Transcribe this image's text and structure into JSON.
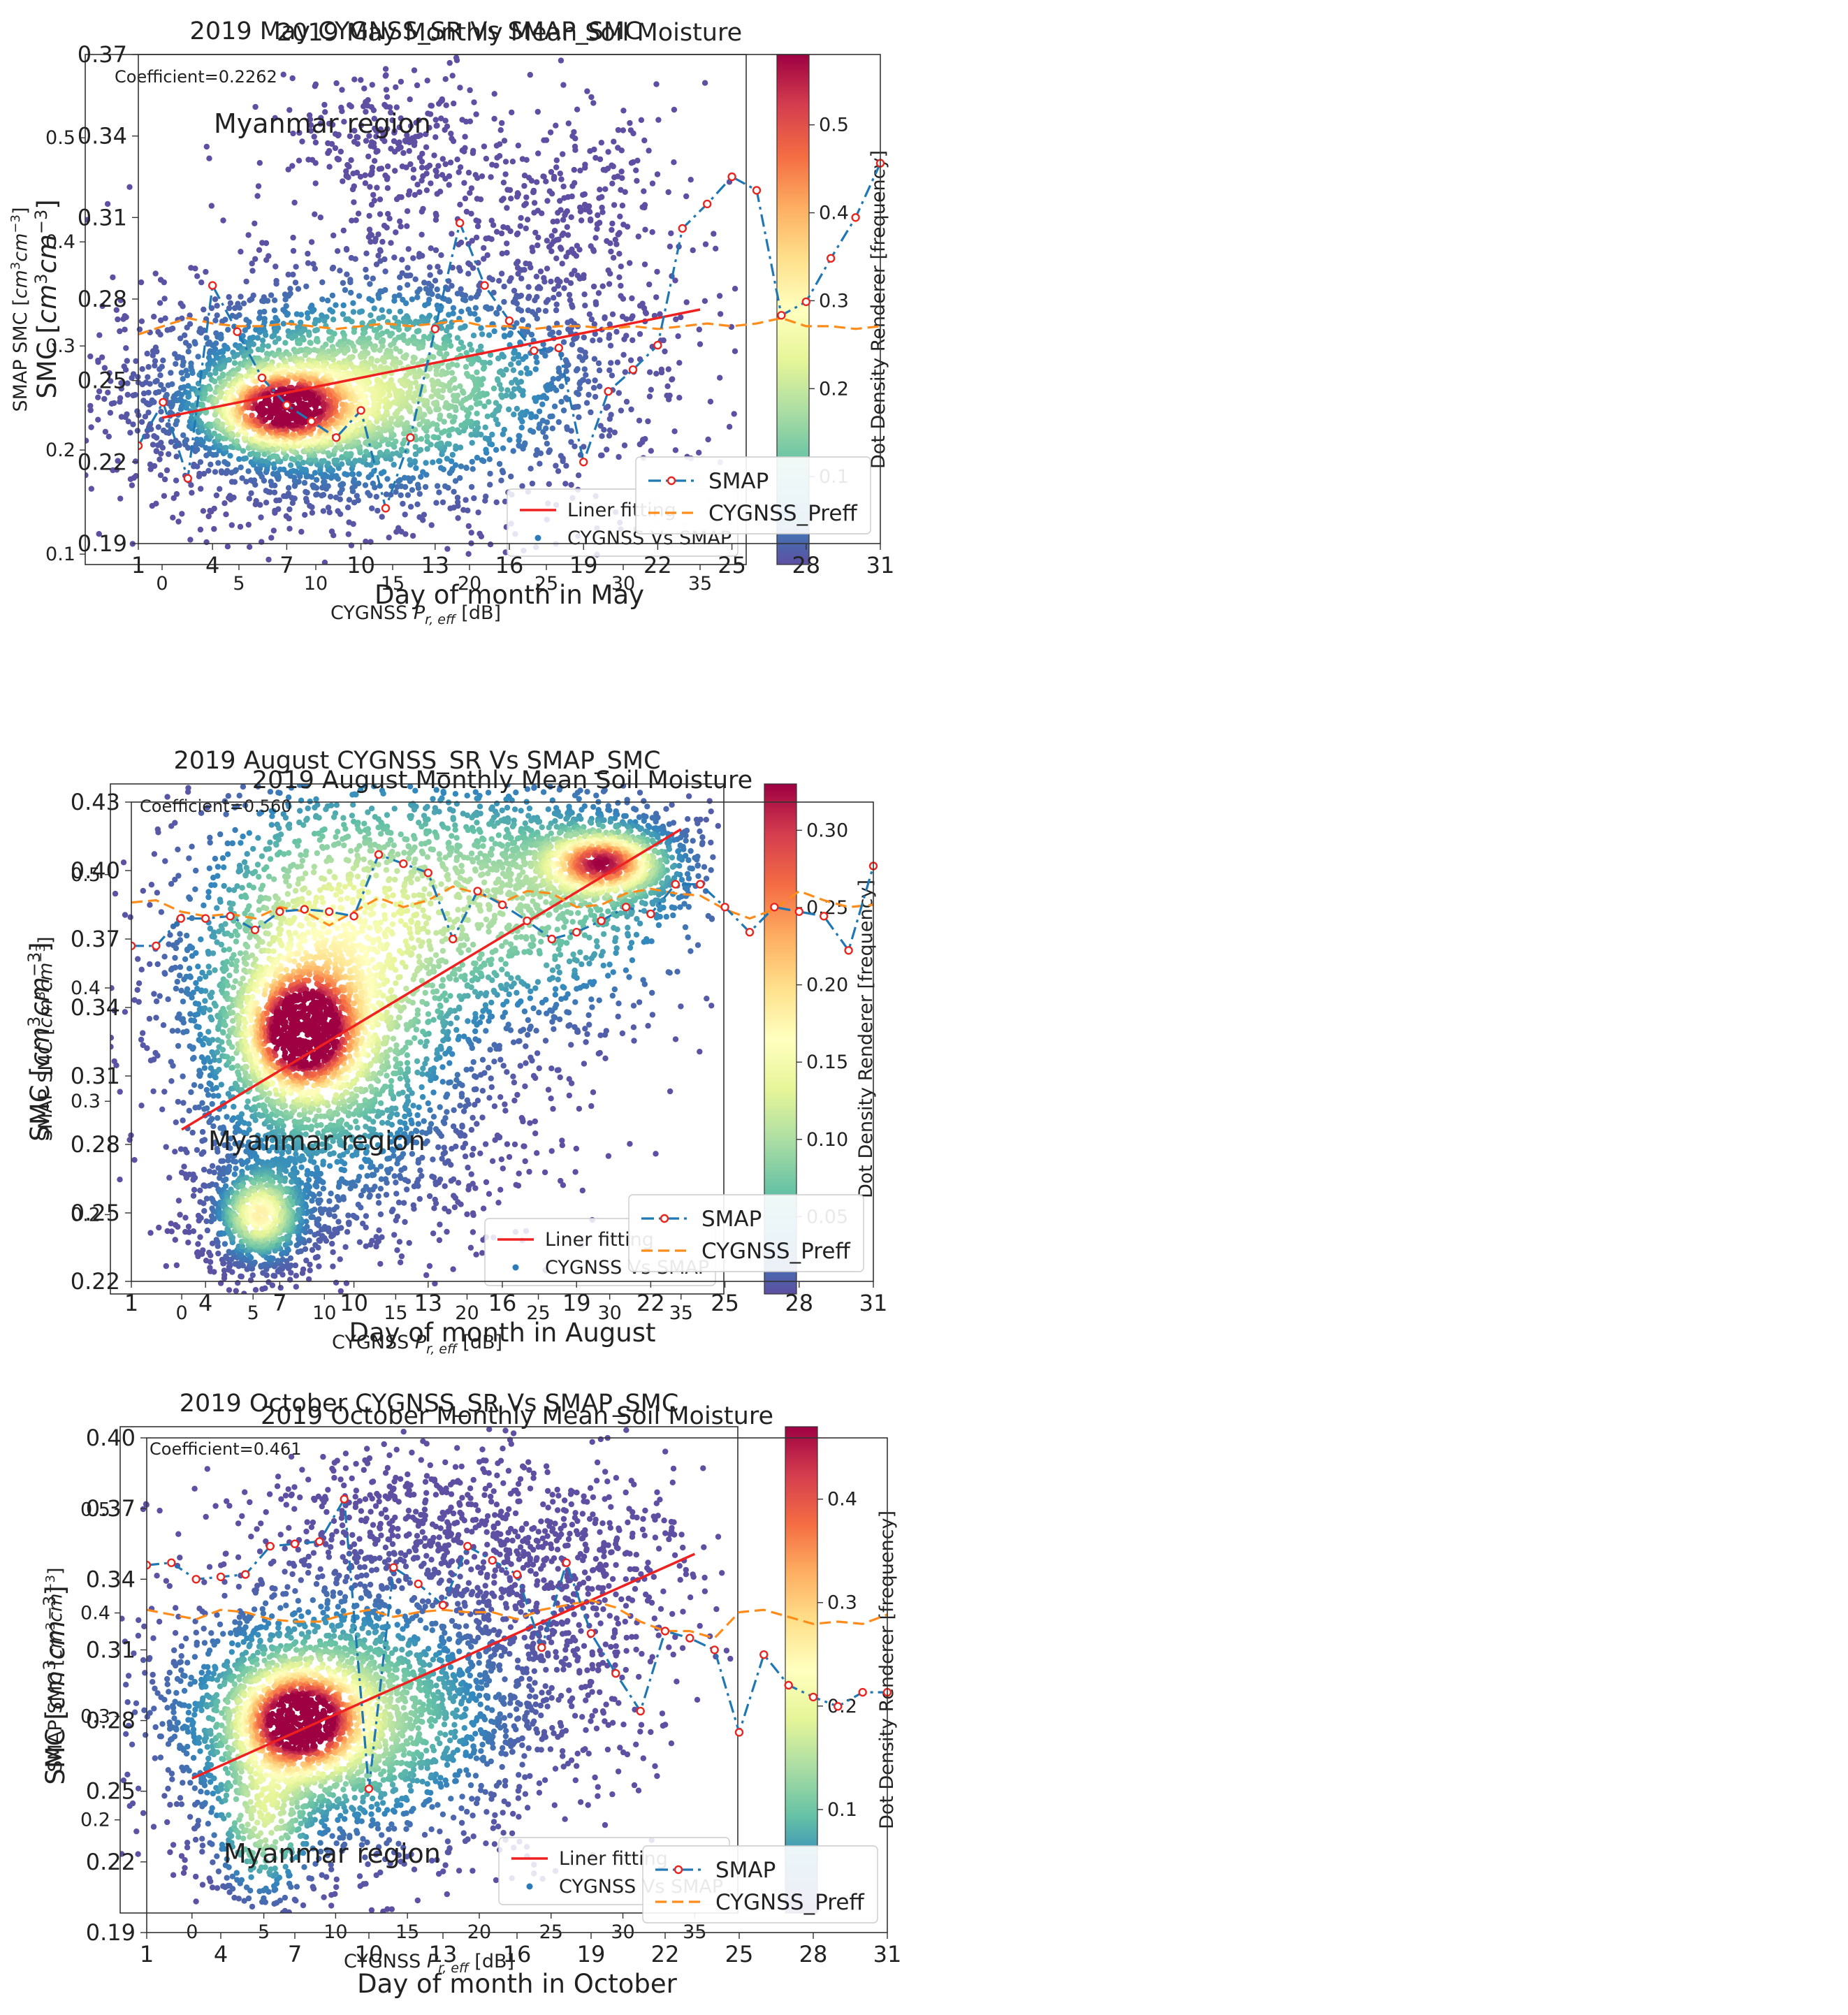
{
  "chart_data": [
    {
      "type": "scatter",
      "title": "2019 May CYGNSS_SR Vs SMAP_SMC",
      "xlabel": "CYGNSS P_r,eff [dB]",
      "xlabel_main": "CYGNSS ",
      "xlabel_sym": "P",
      "xlabel_sub": "r, eff",
      "xlabel_unit": " [dB]",
      "ylabel": "SMAP SMC [cm3cm-3]",
      "ylabel_main": "SMAP SMC [",
      "ylabel_sym1": "cm",
      "ylabel_sup1": "3",
      "ylabel_sym2": "cm",
      "ylabel_sup2": "−3",
      "ylabel_end": "]",
      "xlim": [
        -5,
        38
      ],
      "ylim": [
        0.09,
        0.58
      ],
      "xticks": [
        0,
        5,
        10,
        15,
        20,
        25,
        30,
        35
      ],
      "yticks": [
        0.1,
        0.2,
        0.3,
        0.4,
        0.5
      ],
      "annotation": "Coefficient=0.2262",
      "fit_line": {
        "x": [
          0,
          35
        ],
        "y": [
          0.231,
          0.335
        ]
      },
      "density_centers": [
        {
          "x": 8,
          "y": 0.24,
          "sx": 2.6,
          "sy": 0.022,
          "w": 1.0
        },
        {
          "x": 14,
          "y": 0.26,
          "sx": 6.5,
          "sy": 0.05,
          "w": 0.35
        }
      ],
      "scatter_regions": [
        {
          "cx": 12,
          "cy": 0.25,
          "sx": 8,
          "sy": 0.06,
          "n": 1500
        },
        {
          "cx": 15,
          "cy": 0.49,
          "sx": 3.5,
          "sy": 0.04,
          "n": 280
        },
        {
          "cx": 27,
          "cy": 0.44,
          "sx": 3.5,
          "sy": 0.05,
          "n": 200
        },
        {
          "cx": 22,
          "cy": 0.33,
          "sx": 6,
          "sy": 0.07,
          "n": 450
        }
      ],
      "colorbar": {
        "label": "Dot Density Renderer [frequency]",
        "max": 0.58,
        "ticks": [
          0.1,
          0.2,
          0.3,
          0.4,
          0.5
        ]
      },
      "legend": [
        "Liner fitting",
        "CYGNSS Vs SMAP"
      ]
    },
    {
      "type": "line",
      "title": "2019 May Monthly Mean Soil Moisture",
      "xlabel": "Day of month in May",
      "ylabel": "SMC [cm3cm-3]",
      "ylabel_main": "SMC [",
      "ylabel_sym1": "cm",
      "ylabel_sup1": "3",
      "ylabel_sym2": "cm",
      "ylabel_sup2": "−3",
      "ylabel_end": "]",
      "annotation": "Myanmar region",
      "annotation_pos": "top-left",
      "legend_position": "bottom-right",
      "xlim": [
        1,
        31
      ],
      "ylim": [
        0.19,
        0.37
      ],
      "xticks": [
        1,
        4,
        7,
        10,
        13,
        16,
        19,
        22,
        25,
        28,
        31
      ],
      "yticks": [
        0.19,
        0.22,
        0.25,
        0.28,
        0.31,
        0.34,
        0.37
      ],
      "x": [
        1,
        2,
        3,
        4,
        5,
        6,
        7,
        8,
        9,
        10,
        11,
        12,
        13,
        14,
        15,
        16,
        17,
        18,
        19,
        20,
        21,
        22,
        23,
        24,
        25,
        26,
        27,
        28,
        29,
        30,
        31
      ],
      "series": [
        {
          "name": "SMAP",
          "values": [
            0.226,
            0.242,
            0.214,
            0.285,
            0.268,
            0.251,
            0.241,
            0.235,
            0.229,
            0.239,
            0.203,
            0.229,
            0.269,
            0.308,
            0.285,
            0.272,
            0.261,
            0.262,
            0.22,
            0.246,
            0.254,
            0.263,
            0.306,
            0.315,
            0.325,
            0.32,
            0.274,
            0.279,
            0.295,
            0.31,
            0.33
          ]
        },
        {
          "name": "CYGNSS_Preff",
          "values": [
            0.267,
            0.27,
            0.273,
            0.271,
            0.27,
            0.27,
            0.271,
            0.27,
            0.269,
            0.27,
            0.271,
            0.27,
            0.271,
            0.272,
            0.27,
            0.27,
            0.269,
            0.27,
            0.27,
            0.269,
            0.27,
            0.269,
            0.27,
            0.271,
            0.27,
            0.271,
            0.273,
            0.27,
            0.27,
            0.269,
            0.27
          ]
        }
      ],
      "legend": [
        "SMAP",
        "CYGNSS_Preff"
      ]
    },
    {
      "type": "scatter",
      "title": "2019 August CYGNSS_SR Vs SMAP_SMC",
      "xlabel": "CYGNSS P_r,eff [dB]",
      "xlabel_main": "CYGNSS ",
      "xlabel_sym": "P",
      "xlabel_sub": "r, eff",
      "xlabel_unit": " [dB]",
      "ylabel": "SMAP SMC [cm3cm-3]",
      "ylabel_main": "SMAP SMC [",
      "ylabel_sym1": "cm",
      "ylabel_sup1": "3",
      "ylabel_sym2": "cm",
      "ylabel_sup2": "−3",
      "ylabel_end": "]",
      "xlim": [
        -5,
        38
      ],
      "ylim": [
        0.13,
        0.58
      ],
      "xticks": [
        0,
        5,
        10,
        15,
        20,
        25,
        30,
        35
      ],
      "yticks": [
        0.2,
        0.3,
        0.4,
        0.5
      ],
      "annotation": "Coefficient=0.560",
      "fit_line": {
        "x": [
          0,
          35
        ],
        "y": [
          0.275,
          0.54
        ]
      },
      "density_centers": [
        {
          "x": 8.5,
          "y": 0.36,
          "sx": 2.2,
          "sy": 0.03,
          "w": 1.0
        },
        {
          "x": 29.5,
          "y": 0.51,
          "sx": 2.2,
          "sy": 0.015,
          "w": 0.8
        },
        {
          "x": 10,
          "y": 0.4,
          "sx": 5,
          "sy": 0.09,
          "w": 0.45
        },
        {
          "x": 5.5,
          "y": 0.2,
          "sx": 1.5,
          "sy": 0.02,
          "w": 0.5
        },
        {
          "x": 22,
          "y": 0.48,
          "sx": 8,
          "sy": 0.06,
          "w": 0.28
        }
      ],
      "scatter_regions": [
        {
          "cx": 9,
          "cy": 0.37,
          "sx": 5,
          "sy": 0.09,
          "n": 1100
        },
        {
          "cx": 22,
          "cy": 0.43,
          "sx": 6,
          "sy": 0.08,
          "n": 700
        },
        {
          "cx": 6,
          "cy": 0.2,
          "sx": 2,
          "sy": 0.03,
          "n": 250
        },
        {
          "cx": 20,
          "cy": 0.53,
          "sx": 7,
          "sy": 0.025,
          "n": 250
        },
        {
          "cx": 14,
          "cy": 0.24,
          "sx": 5,
          "sy": 0.04,
          "n": 250
        }
      ],
      "colorbar": {
        "label": "Dot Density Renderer [frequency]",
        "max": 0.33,
        "ticks": [
          0.05,
          0.1,
          0.15,
          0.2,
          0.25,
          0.3
        ]
      },
      "legend": [
        "Liner fitting",
        "CYGNSS Vs SMAP"
      ]
    },
    {
      "type": "line",
      "title": "2019 August Monthly Mean Soil Moisture",
      "xlabel": "Day of month in August",
      "ylabel": "SMC [cm3cm-3]",
      "ylabel_main": "SMC [",
      "ylabel_sym1": "cm",
      "ylabel_sup1": "3",
      "ylabel_sym2": "cm",
      "ylabel_sup2": "−3",
      "ylabel_end": "]",
      "annotation": "Myanmar region",
      "annotation_pos": "mid-left",
      "legend_position": "bottom-right",
      "xlim": [
        1,
        31
      ],
      "ylim": [
        0.22,
        0.43
      ],
      "xticks": [
        1,
        4,
        7,
        10,
        13,
        16,
        19,
        22,
        25,
        28,
        31
      ],
      "yticks": [
        0.22,
        0.25,
        0.28,
        0.31,
        0.34,
        0.37,
        0.4,
        0.43
      ],
      "x": [
        1,
        2,
        3,
        4,
        5,
        6,
        7,
        8,
        9,
        10,
        11,
        12,
        13,
        14,
        15,
        16,
        17,
        18,
        19,
        20,
        21,
        22,
        23,
        24,
        25,
        26,
        27,
        28,
        29,
        30,
        31
      ],
      "series": [
        {
          "name": "SMAP",
          "values": [
            0.367,
            0.367,
            0.379,
            0.379,
            0.38,
            0.374,
            0.382,
            0.383,
            0.382,
            0.38,
            0.407,
            0.403,
            0.399,
            0.37,
            0.391,
            0.385,
            0.378,
            0.37,
            0.373,
            0.378,
            0.384,
            0.381,
            0.394,
            0.394,
            0.384,
            0.373,
            0.384,
            0.382,
            0.38,
            0.365,
            0.402
          ]
        },
        {
          "name": "CYGNSS_Preff",
          "values": [
            0.386,
            0.387,
            0.382,
            0.38,
            0.381,
            0.379,
            0.384,
            0.382,
            0.376,
            0.382,
            0.388,
            0.384,
            0.387,
            0.393,
            0.39,
            0.386,
            0.391,
            0.39,
            0.384,
            0.385,
            0.39,
            0.392,
            0.39,
            0.389,
            0.383,
            0.379,
            0.383,
            0.391,
            0.387,
            0.384,
            0.385
          ]
        }
      ],
      "legend": [
        "SMAP",
        "CYGNSS_Preff"
      ]
    },
    {
      "type": "scatter",
      "title": "2019 October CYGNSS_SR Vs SMAP_SMC",
      "xlabel": "CYGNSS P_r,eff [dB]",
      "xlabel_main": "CYGNSS ",
      "xlabel_sym": "P",
      "xlabel_sub": "r, eff",
      "xlabel_unit": " [dB]",
      "ylabel": "SMAP SMC [cm3cm-3]",
      "ylabel_main": "SMAP SMC [",
      "ylabel_sym1": "cm",
      "ylabel_sup1": "3",
      "ylabel_sym2": "cm",
      "ylabel_sup2": "−3",
      "ylabel_end": "]",
      "xlim": [
        -5,
        38
      ],
      "ylim": [
        0.11,
        0.58
      ],
      "xticks": [
        0,
        5,
        10,
        15,
        20,
        25,
        30,
        35
      ],
      "yticks": [
        0.2,
        0.3,
        0.4,
        0.5
      ],
      "annotation": "Coefficient=0.461",
      "fit_line": {
        "x": [
          0,
          35
        ],
        "y": [
          0.24,
          0.457
        ]
      },
      "density_centers": [
        {
          "x": 7.5,
          "y": 0.295,
          "sx": 2.4,
          "sy": 0.028,
          "w": 1.0
        },
        {
          "x": 10,
          "y": 0.3,
          "sx": 6,
          "sy": 0.06,
          "w": 0.35
        },
        {
          "x": 5,
          "y": 0.2,
          "sx": 1.8,
          "sy": 0.04,
          "w": 0.3
        }
      ],
      "scatter_regions": [
        {
          "cx": 12,
          "cy": 0.31,
          "sx": 7,
          "sy": 0.07,
          "n": 1300
        },
        {
          "cx": 16,
          "cy": 0.49,
          "sx": 6,
          "sy": 0.04,
          "n": 450
        },
        {
          "cx": 28,
          "cy": 0.45,
          "sx": 4,
          "sy": 0.05,
          "n": 300
        },
        {
          "cx": 22,
          "cy": 0.36,
          "sx": 5,
          "sy": 0.06,
          "n": 400
        }
      ],
      "colorbar": {
        "label": "Dot Density Renderer [frequency]",
        "max": 0.47,
        "ticks": [
          0.1,
          0.2,
          0.3,
          0.4
        ]
      },
      "legend": [
        "Liner fitting",
        "CYGNSS Vs SMAP"
      ]
    },
    {
      "type": "line",
      "title": "2019 October Monthly Mean Soil Moisture",
      "xlabel": "Day of month in October",
      "ylabel": "SMC [cm3cm-3]",
      "ylabel_main": "SMC [",
      "ylabel_sym1": "cm",
      "ylabel_sup1": "3",
      "ylabel_sym2": "cm",
      "ylabel_sup2": "−3",
      "ylabel_end": "]",
      "annotation": "Myanmar region",
      "annotation_pos": "bottom-left",
      "legend_position": "bottom-right",
      "xlim": [
        1,
        31
      ],
      "ylim": [
        0.19,
        0.4
      ],
      "xticks": [
        1,
        4,
        7,
        10,
        13,
        16,
        19,
        22,
        25,
        28,
        31
      ],
      "yticks": [
        0.19,
        0.22,
        0.25,
        0.28,
        0.31,
        0.34,
        0.37,
        0.4
      ],
      "x": [
        1,
        2,
        3,
        4,
        5,
        6,
        7,
        8,
        9,
        10,
        11,
        12,
        13,
        14,
        15,
        16,
        17,
        18,
        19,
        20,
        21,
        22,
        23,
        24,
        25,
        26,
        27,
        28,
        29,
        30,
        31
      ],
      "series": [
        {
          "name": "SMAP",
          "values": [
            0.346,
            0.347,
            0.34,
            0.341,
            0.342,
            0.354,
            0.355,
            0.356,
            0.374,
            0.251,
            0.345,
            0.338,
            0.329,
            0.354,
            0.348,
            0.342,
            0.311,
            0.347,
            0.317,
            0.3,
            0.284,
            0.318,
            0.315,
            0.31,
            0.275,
            0.308,
            0.295,
            0.29,
            0.286,
            0.292,
            0.292
          ]
        },
        {
          "name": "CYGNSS_Preff",
          "values": [
            0.327,
            0.325,
            0.323,
            0.327,
            0.326,
            0.323,
            0.322,
            0.322,
            0.325,
            0.327,
            0.324,
            0.326,
            0.327,
            0.326,
            0.326,
            0.323,
            0.327,
            0.329,
            0.331,
            0.328,
            0.322,
            0.318,
            0.318,
            0.315,
            0.326,
            0.327,
            0.324,
            0.321,
            0.322,
            0.321,
            0.325
          ]
        }
      ],
      "legend": [
        "SMAP",
        "CYGNSS_Preff"
      ]
    }
  ]
}
